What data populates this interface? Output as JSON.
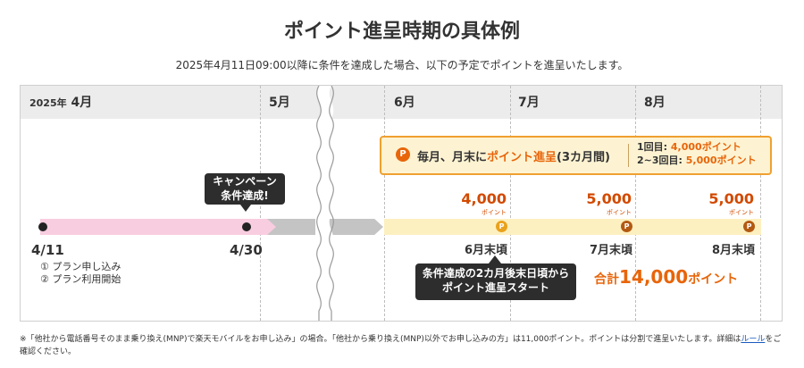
{
  "title": "ポイント進呈時期の具体例",
  "subtitle": "2025年4月11日09:00以降に条件を達成した場合、以下の予定でポイントを進呈いたします。",
  "months": {
    "april_year": "2025年",
    "april": "4月",
    "may": "5月",
    "june": "6月",
    "july": "7月",
    "august": "8月"
  },
  "info_box": {
    "coin": "P",
    "main_prefix": "毎月、月末に",
    "main_highlight": "ポイント進呈",
    "main_suffix": "(3カ月間)",
    "first_label": "1回目:",
    "first_value": "4,000ポイント",
    "later_label": "2~3回目:",
    "later_value": "5,000ポイント"
  },
  "campaign_callout": {
    "line1": "キャンペーン",
    "line2": "条件達成!"
  },
  "start": {
    "date": "4/11",
    "step1": "① プラン申し込み",
    "step2": "② プラン利用開始"
  },
  "end_april": {
    "date": "4/30"
  },
  "payouts": [
    {
      "amount": "4,000",
      "unit": "ポイント",
      "coin": "P",
      "label": "6月末頃"
    },
    {
      "amount": "5,000",
      "unit": "ポイント",
      "coin": "P",
      "label": "7月末頃"
    },
    {
      "amount": "5,000",
      "unit": "ポイント",
      "coin": "P",
      "label": "8月末頃"
    }
  ],
  "start_callout": {
    "line1": "条件達成の2カ月後末日頃から",
    "line2": "ポイント進呈スタート"
  },
  "total": {
    "prefix": "合計",
    "amount": "14,000",
    "suffix": "ポイント"
  },
  "footnote": {
    "text": "※「他社から電話番号そのまま乗り換え(MNP)で楽天モバイルをお申し込み」の場合。「他社から乗り換え(MNP)以外でお申し込みの方」は11,000ポイント。ポイントは分割で進呈いたします。詳細は",
    "link": "ルール",
    "suffix": "をご確認ください。"
  },
  "colors": {
    "accent": "#e8650a",
    "coin_gold": "#e9a21d",
    "coin_brown": "#b35a12",
    "bar_pink": "#f8cde0",
    "bar_gray": "#c4c4c4",
    "bar_yellow": "#fdf0c0",
    "callout_bg": "#2d2d2d"
  }
}
